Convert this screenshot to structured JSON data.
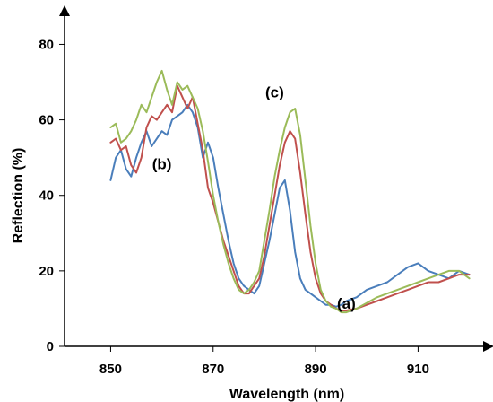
{
  "chart_data": {
    "type": "line",
    "title": "",
    "xlabel": "Wavelength (nm)",
    "ylabel": "Reflection (%)",
    "xlim": [
      841,
      922
    ],
    "ylim": [
      0,
      87
    ],
    "x_ticks": [
      850,
      870,
      890,
      910
    ],
    "y_ticks": [
      0,
      20,
      40,
      60,
      80
    ],
    "grid": false,
    "legend": "none",
    "annotations": [
      {
        "text": "(a)",
        "x": 896,
        "y": 10
      },
      {
        "text": "(b)",
        "x": 860,
        "y": 47
      },
      {
        "text": "(c)",
        "x": 882,
        "y": 66
      }
    ],
    "series": [
      {
        "color": "#4a7ebb",
        "x": [
          850,
          851,
          852,
          853,
          854,
          855,
          856,
          857,
          858,
          859,
          860,
          861,
          862,
          863,
          864,
          865,
          866,
          867,
          868,
          869,
          870,
          871,
          872,
          873,
          874,
          875,
          876,
          877,
          878,
          879,
          880,
          881,
          882,
          883,
          884,
          885,
          886,
          887,
          888,
          889,
          890,
          891,
          892,
          893,
          894,
          895,
          896,
          898,
          900,
          902,
          904,
          906,
          908,
          910,
          912,
          914,
          916,
          918,
          920
        ],
        "y": [
          44,
          50,
          52,
          47,
          45,
          50,
          54,
          57,
          53,
          55,
          57,
          56,
          60,
          61,
          62,
          64,
          62,
          58,
          50,
          54,
          50,
          42,
          35,
          28,
          22,
          18,
          16,
          15,
          14,
          16,
          22,
          28,
          35,
          42,
          44,
          36,
          25,
          18,
          15,
          14,
          13,
          12,
          11,
          11,
          10.5,
          11,
          12,
          13,
          15,
          16,
          17,
          19,
          21,
          22,
          20,
          19,
          18,
          20,
          19
        ]
      },
      {
        "color": "#c0504d",
        "x": [
          850,
          851,
          852,
          853,
          854,
          855,
          856,
          857,
          858,
          859,
          860,
          861,
          862,
          863,
          864,
          865,
          866,
          867,
          868,
          869,
          870,
          871,
          872,
          873,
          874,
          875,
          876,
          877,
          878,
          879,
          880,
          881,
          882,
          883,
          884,
          885,
          886,
          887,
          888,
          889,
          890,
          891,
          892,
          893,
          894,
          895,
          896,
          898,
          900,
          902,
          904,
          906,
          908,
          910,
          912,
          914,
          916,
          918,
          920
        ],
        "y": [
          54,
          55,
          52,
          53,
          48,
          46,
          50,
          58,
          61,
          60,
          62,
          64,
          62,
          69,
          66,
          63,
          66,
          59,
          52,
          42,
          38,
          33,
          28,
          24,
          20,
          16,
          14,
          14,
          16,
          18,
          24,
          32,
          40,
          48,
          54,
          57,
          55,
          46,
          35,
          25,
          18,
          14,
          12,
          11,
          10,
          9.5,
          9.5,
          10,
          11,
          12,
          13,
          14,
          15,
          16,
          17,
          17,
          18,
          19,
          19
        ]
      },
      {
        "color": "#9bbb59",
        "x": [
          850,
          851,
          852,
          853,
          854,
          855,
          856,
          857,
          858,
          859,
          860,
          861,
          862,
          863,
          864,
          865,
          866,
          867,
          868,
          869,
          870,
          871,
          872,
          873,
          874,
          875,
          876,
          877,
          878,
          879,
          880,
          881,
          882,
          883,
          884,
          885,
          886,
          887,
          888,
          889,
          890,
          891,
          892,
          893,
          894,
          895,
          896,
          898,
          900,
          902,
          904,
          906,
          908,
          910,
          912,
          914,
          916,
          918,
          920
        ],
        "y": [
          58,
          59,
          54,
          55,
          57,
          60,
          64,
          62,
          66,
          70,
          73,
          68,
          64,
          70,
          68,
          69,
          66,
          63,
          57,
          49,
          40,
          33,
          27,
          22,
          18,
          15,
          14,
          15,
          17,
          20,
          28,
          36,
          45,
          52,
          58,
          62,
          63,
          56,
          44,
          32,
          22,
          15,
          12,
          10.5,
          10,
          9,
          9,
          10,
          11.5,
          13,
          14,
          15,
          16,
          17,
          18,
          19,
          20,
          20,
          18
        ]
      }
    ]
  }
}
